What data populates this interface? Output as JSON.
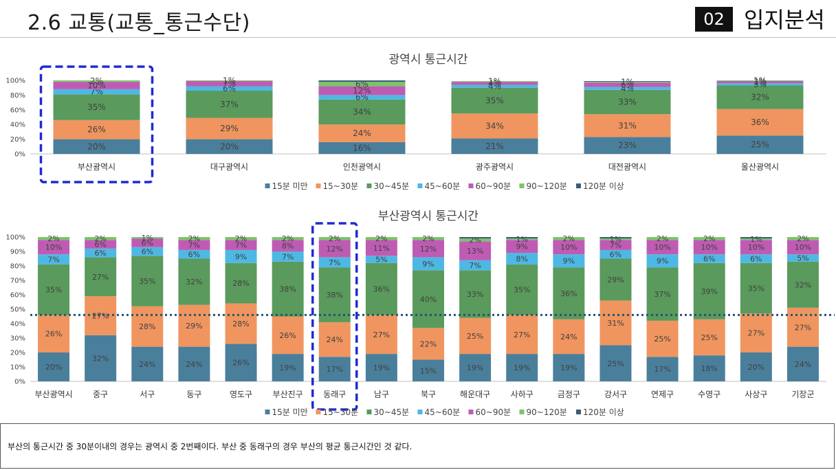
{
  "header": {
    "title": "2.6 교통(교통_통근수단)",
    "section_number": "02",
    "section_name": "입지분석"
  },
  "legend_labels": [
    "15분 미만",
    "15~30분",
    "30~45분",
    "45~60분",
    "60~90분",
    "90~120분",
    "120분 이상"
  ],
  "colors": [
    "#4a7f9c",
    "#f0955f",
    "#5a9a5c",
    "#4eb8e4",
    "#be5cb3",
    "#7cc46a",
    "#3a5d75"
  ],
  "chart_data": [
    {
      "type": "bar",
      "stacked": true,
      "title": "광역시 통근시간",
      "categories": [
        "부산광역시",
        "대구광역시",
        "인천광역시",
        "광주광역시",
        "대전광역시",
        "울산광역시"
      ],
      "yticks": [
        "0%",
        "20%",
        "40%",
        "60%",
        "80%",
        "100%"
      ],
      "ylim": [
        0,
        100
      ],
      "legend_position": "bottom",
      "highlight_box_category": "부산광역시",
      "series": [
        {
          "name": "15분 미만",
          "values": [
            20,
            20,
            16,
            21,
            23,
            25
          ]
        },
        {
          "name": "15~30분",
          "values": [
            26,
            29,
            24,
            34,
            31,
            36
          ]
        },
        {
          "name": "30~45분",
          "values": [
            35,
            37,
            34,
            35,
            33,
            32
          ]
        },
        {
          "name": "45~60분",
          "values": [
            7,
            6,
            6,
            4,
            4,
            3
          ]
        },
        {
          "name": "60~90분",
          "values": [
            10,
            7,
            12,
            4,
            6,
            3
          ]
        },
        {
          "name": "90~120분",
          "values": [
            2,
            1,
            6,
            1,
            1,
            1
          ]
        },
        {
          "name": "120분 이상",
          "values": [
            0,
            0,
            2,
            0,
            1,
            0
          ]
        }
      ]
    },
    {
      "type": "bar",
      "stacked": true,
      "title": "부산광역시 통근시간",
      "categories": [
        "부산광역시",
        "중구",
        "서구",
        "동구",
        "영도구",
        "부산진구",
        "동래구",
        "남구",
        "북구",
        "해운대구",
        "사하구",
        "금정구",
        "강서구",
        "연제구",
        "수영구",
        "사상구",
        "기장군"
      ],
      "yticks": [
        "0%",
        "10%",
        "20%",
        "30%",
        "40%",
        "50%",
        "60%",
        "70%",
        "80%",
        "90%",
        "100%"
      ],
      "ylim": [
        0,
        100
      ],
      "legend_position": "bottom",
      "highlight_box_category": "동래구",
      "average_line": 46,
      "series": [
        {
          "name": "15분 미만",
          "values": [
            20,
            32,
            24,
            24,
            26,
            19,
            17,
            19,
            15,
            19,
            19,
            19,
            25,
            17,
            18,
            20,
            24
          ]
        },
        {
          "name": "15~30분",
          "values": [
            26,
            27,
            28,
            29,
            28,
            26,
            24,
            27,
            22,
            25,
            27,
            24,
            31,
            25,
            25,
            27,
            27
          ]
        },
        {
          "name": "30~45분",
          "values": [
            35,
            27,
            35,
            32,
            28,
            38,
            38,
            36,
            40,
            33,
            35,
            36,
            29,
            37,
            39,
            35,
            32
          ]
        },
        {
          "name": "45~60분",
          "values": [
            7,
            6,
            6,
            6,
            9,
            7,
            7,
            5,
            9,
            7,
            8,
            9,
            6,
            9,
            6,
            6,
            5
          ]
        },
        {
          "name": "60~90분",
          "values": [
            10,
            6,
            6,
            7,
            7,
            8,
            12,
            11,
            12,
            13,
            9,
            10,
            7,
            10,
            10,
            10,
            10
          ]
        },
        {
          "name": "90~120분",
          "values": [
            2,
            2,
            1,
            2,
            2,
            2,
            2,
            2,
            2,
            2,
            1,
            2,
            1,
            2,
            2,
            1,
            2
          ]
        },
        {
          "name": "120분 이상",
          "values": [
            0,
            0,
            0,
            0,
            0,
            0,
            0,
            0,
            0,
            1,
            1,
            0,
            1,
            0,
            0,
            1,
            0
          ]
        }
      ]
    }
  ],
  "note": "부산의 통근시간 중 30분이내의 경우는 광역시 중 2번째이다. 부산 중 동래구의 경우 부산의 평균 통근시간인 것 같다."
}
